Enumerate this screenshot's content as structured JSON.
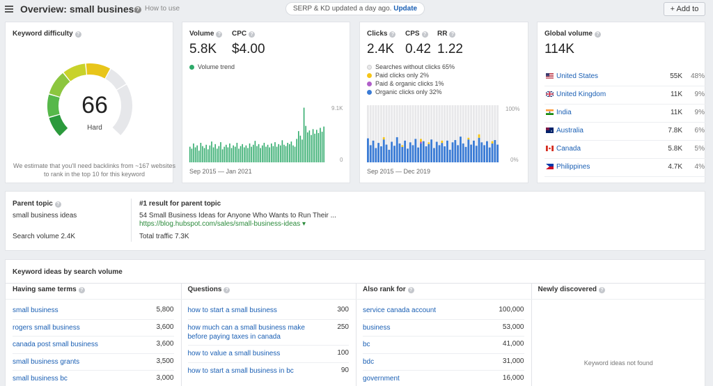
{
  "header": {
    "title": "Overview: small business",
    "how_to": "How to use",
    "serp_text": "SERP & KD updated a day ago.",
    "serp_link": "Update",
    "add_to": "+ Add to"
  },
  "kd": {
    "title": "Keyword difficulty",
    "value": "66",
    "label": "Hard",
    "gauge_fraction": 0.66,
    "description": "We estimate that you'll need backlinks from ~167 websites to rank in the top 10 for this keyword"
  },
  "volume": {
    "volume_label": "Volume",
    "volume_value": "5.8K",
    "cpc_label": "CPC",
    "cpc_value": "$4.00",
    "trend_label": "Volume trend",
    "y_max_label": "9.1K",
    "y_min_label": "0",
    "date_range": "Sep 2015 — Jan 2021"
  },
  "clicks": {
    "clicks_label": "Clicks",
    "clicks_value": "2.4K",
    "cps_label": "CPS",
    "cps_value": "0.42",
    "rr_label": "RR",
    "rr_value": "1.22",
    "legend": [
      {
        "label": "Searches without clicks 65%",
        "color": "#e8e8ea"
      },
      {
        "label": "Paid clicks only 2%",
        "color": "#f5c518"
      },
      {
        "label": "Paid & organic clicks 1%",
        "color": "#b05fc9"
      },
      {
        "label": "Organic clicks only 32%",
        "color": "#3a7bd5"
      }
    ],
    "y_max_label": "100%",
    "y_min_label": "0%",
    "date_range": "Sep 2015 — Dec 2019"
  },
  "global": {
    "title": "Global volume",
    "value": "114K",
    "countries": [
      {
        "name": "United States",
        "volume": "55K",
        "pct": "48%",
        "flag": "us"
      },
      {
        "name": "United Kingdom",
        "volume": "11K",
        "pct": "9%",
        "flag": "uk"
      },
      {
        "name": "India",
        "volume": "11K",
        "pct": "9%",
        "flag": "in"
      },
      {
        "name": "Australia",
        "volume": "7.8K",
        "pct": "6%",
        "flag": "au"
      },
      {
        "name": "Canada",
        "volume": "5.8K",
        "pct": "5%",
        "flag": "ca"
      },
      {
        "name": "Philippines",
        "volume": "4.7K",
        "pct": "4%",
        "flag": "ph"
      }
    ]
  },
  "parent": {
    "title": "Parent topic",
    "topic": "small business ideas",
    "search_volume": "Search volume 2.4K",
    "result_title": "#1 result for parent topic",
    "result_link": "54 Small Business Ideas for Anyone Who Wants to Run Their ...",
    "result_url": "https://blog.hubspot.com/sales/small-business-ideas ▾",
    "total_traffic": "Total traffic 7.3K"
  },
  "ideas": {
    "title": "Keyword ideas by search volume",
    "columns": [
      {
        "header": "Having same terms",
        "rows": [
          {
            "term": "small business",
            "vol": "5,800"
          },
          {
            "term": "rogers small business",
            "vol": "3,600"
          },
          {
            "term": "canada post small business",
            "vol": "3,600"
          },
          {
            "term": "small business grants",
            "vol": "3,500"
          },
          {
            "term": "small business bc",
            "vol": "3,000"
          }
        ]
      },
      {
        "header": "Questions",
        "rows": [
          {
            "term": "how to start a small business",
            "vol": "300"
          },
          {
            "term": "how much can a small business make before paying taxes in canada",
            "vol": "250"
          },
          {
            "term": "how to value a small business",
            "vol": "100"
          },
          {
            "term": "how to start a small business in bc",
            "vol": "90"
          }
        ]
      },
      {
        "header": "Also rank for",
        "rows": [
          {
            "term": "service canada account",
            "vol": "100,000"
          },
          {
            "term": "business",
            "vol": "53,000"
          },
          {
            "term": "bc",
            "vol": "41,000"
          },
          {
            "term": "bdc",
            "vol": "31,000"
          },
          {
            "term": "government",
            "vol": "16,000"
          }
        ]
      },
      {
        "header": "Newly discovered",
        "rows": [],
        "empty_text": "Keyword ideas not found"
      }
    ]
  },
  "colors": {
    "accent_link": "#1a5fb4",
    "volume_bar": "#2eaa6a",
    "organic": "#3a7bd5",
    "paid": "#f5c518",
    "paid_organic": "#b05fc9",
    "no_click": "#e8e8ea"
  },
  "chart_data": [
    {
      "type": "bar",
      "title": "Volume trend",
      "xlabel": "Sep 2015 — Jan 2021",
      "ylim": [
        0,
        9100
      ],
      "x_range": [
        "Sep 2015",
        "Jan 2021"
      ],
      "values": [
        2400,
        2100,
        2900,
        2300,
        2600,
        1800,
        3000,
        2500,
        2200,
        2700,
        2000,
        2600,
        3200,
        2300,
        2800,
        2100,
        2500,
        3100,
        2000,
        2400,
        2700,
        2300,
        2900,
        2200,
        2600,
        2400,
        3000,
        2100,
        2500,
        2800,
        2300,
        2600,
        2200,
        2900,
        2400,
        2700,
        3300,
        2500,
        2800,
        2200,
        2600,
        3000,
        2400,
        2700,
        2300,
        2900,
        2500,
        3100,
        2400,
        2800,
        2600,
        3400,
        2700,
        2500,
        3000,
        2800,
        3200,
        2600,
        2400,
        3600,
        4800,
        4100,
        3500,
        8400,
        5600,
        4600,
        4900,
        4200,
        5100,
        4400,
        5000,
        4500,
        5300,
        4700,
        5500
      ]
    },
    {
      "type": "bar",
      "title": "Clicks distribution",
      "xlabel": "Sep 2015 — Dec 2019",
      "ylim": [
        0,
        100
      ],
      "x_range": [
        "Sep 2015",
        "Dec 2019"
      ],
      "series": [
        {
          "name": "Organic clicks only",
          "values": [
            42,
            30,
            38,
            25,
            34,
            28,
            40,
            31,
            22,
            36,
            29,
            44,
            33,
            27,
            38,
            24,
            35,
            30,
            41,
            26,
            33,
            37,
            28,
            32,
            40,
            25,
            36,
            30,
            34,
            28,
            38,
            22,
            35,
            39,
            30,
            45,
            33,
            27,
            40,
            31,
            38,
            29,
            43,
            35,
            30,
            37,
            26,
            33,
            39,
            31
          ]
        },
        {
          "name": "Paid clicks only",
          "values": [
            0,
            0,
            0,
            0,
            0,
            0,
            4,
            0,
            0,
            0,
            0,
            0,
            0,
            3,
            0,
            0,
            0,
            0,
            0,
            0,
            5,
            0,
            0,
            3,
            0,
            0,
            0,
            0,
            4,
            0,
            0,
            0,
            0,
            0,
            0,
            0,
            0,
            0,
            3,
            0,
            0,
            0,
            6,
            0,
            0,
            0,
            0,
            4,
            0,
            0
          ]
        },
        {
          "name": "Paid & organic clicks",
          "values": [
            0,
            0,
            0,
            0,
            0,
            0,
            0,
            0,
            0,
            0,
            0,
            0,
            0,
            0,
            0,
            0,
            0,
            0,
            0,
            0,
            3,
            0,
            0,
            0,
            0,
            0,
            0,
            0,
            0,
            0,
            0,
            0,
            0,
            0,
            0,
            0,
            0,
            0,
            0,
            0,
            0,
            0,
            0,
            0,
            0,
            0,
            0,
            0,
            0,
            0
          ]
        },
        {
          "name": "Searches without clicks",
          "values": [
            58,
            70,
            62,
            75,
            66,
            72,
            56,
            69,
            78,
            64,
            71,
            56,
            67,
            70,
            62,
            76,
            65,
            70,
            59,
            74,
            59,
            63,
            72,
            65,
            60,
            75,
            64,
            70,
            62,
            72,
            62,
            78,
            65,
            61,
            70,
            55,
            67,
            73,
            57,
            69,
            62,
            71,
            51,
            65,
            70,
            63,
            74,
            63,
            61,
            69
          ]
        }
      ]
    }
  ]
}
